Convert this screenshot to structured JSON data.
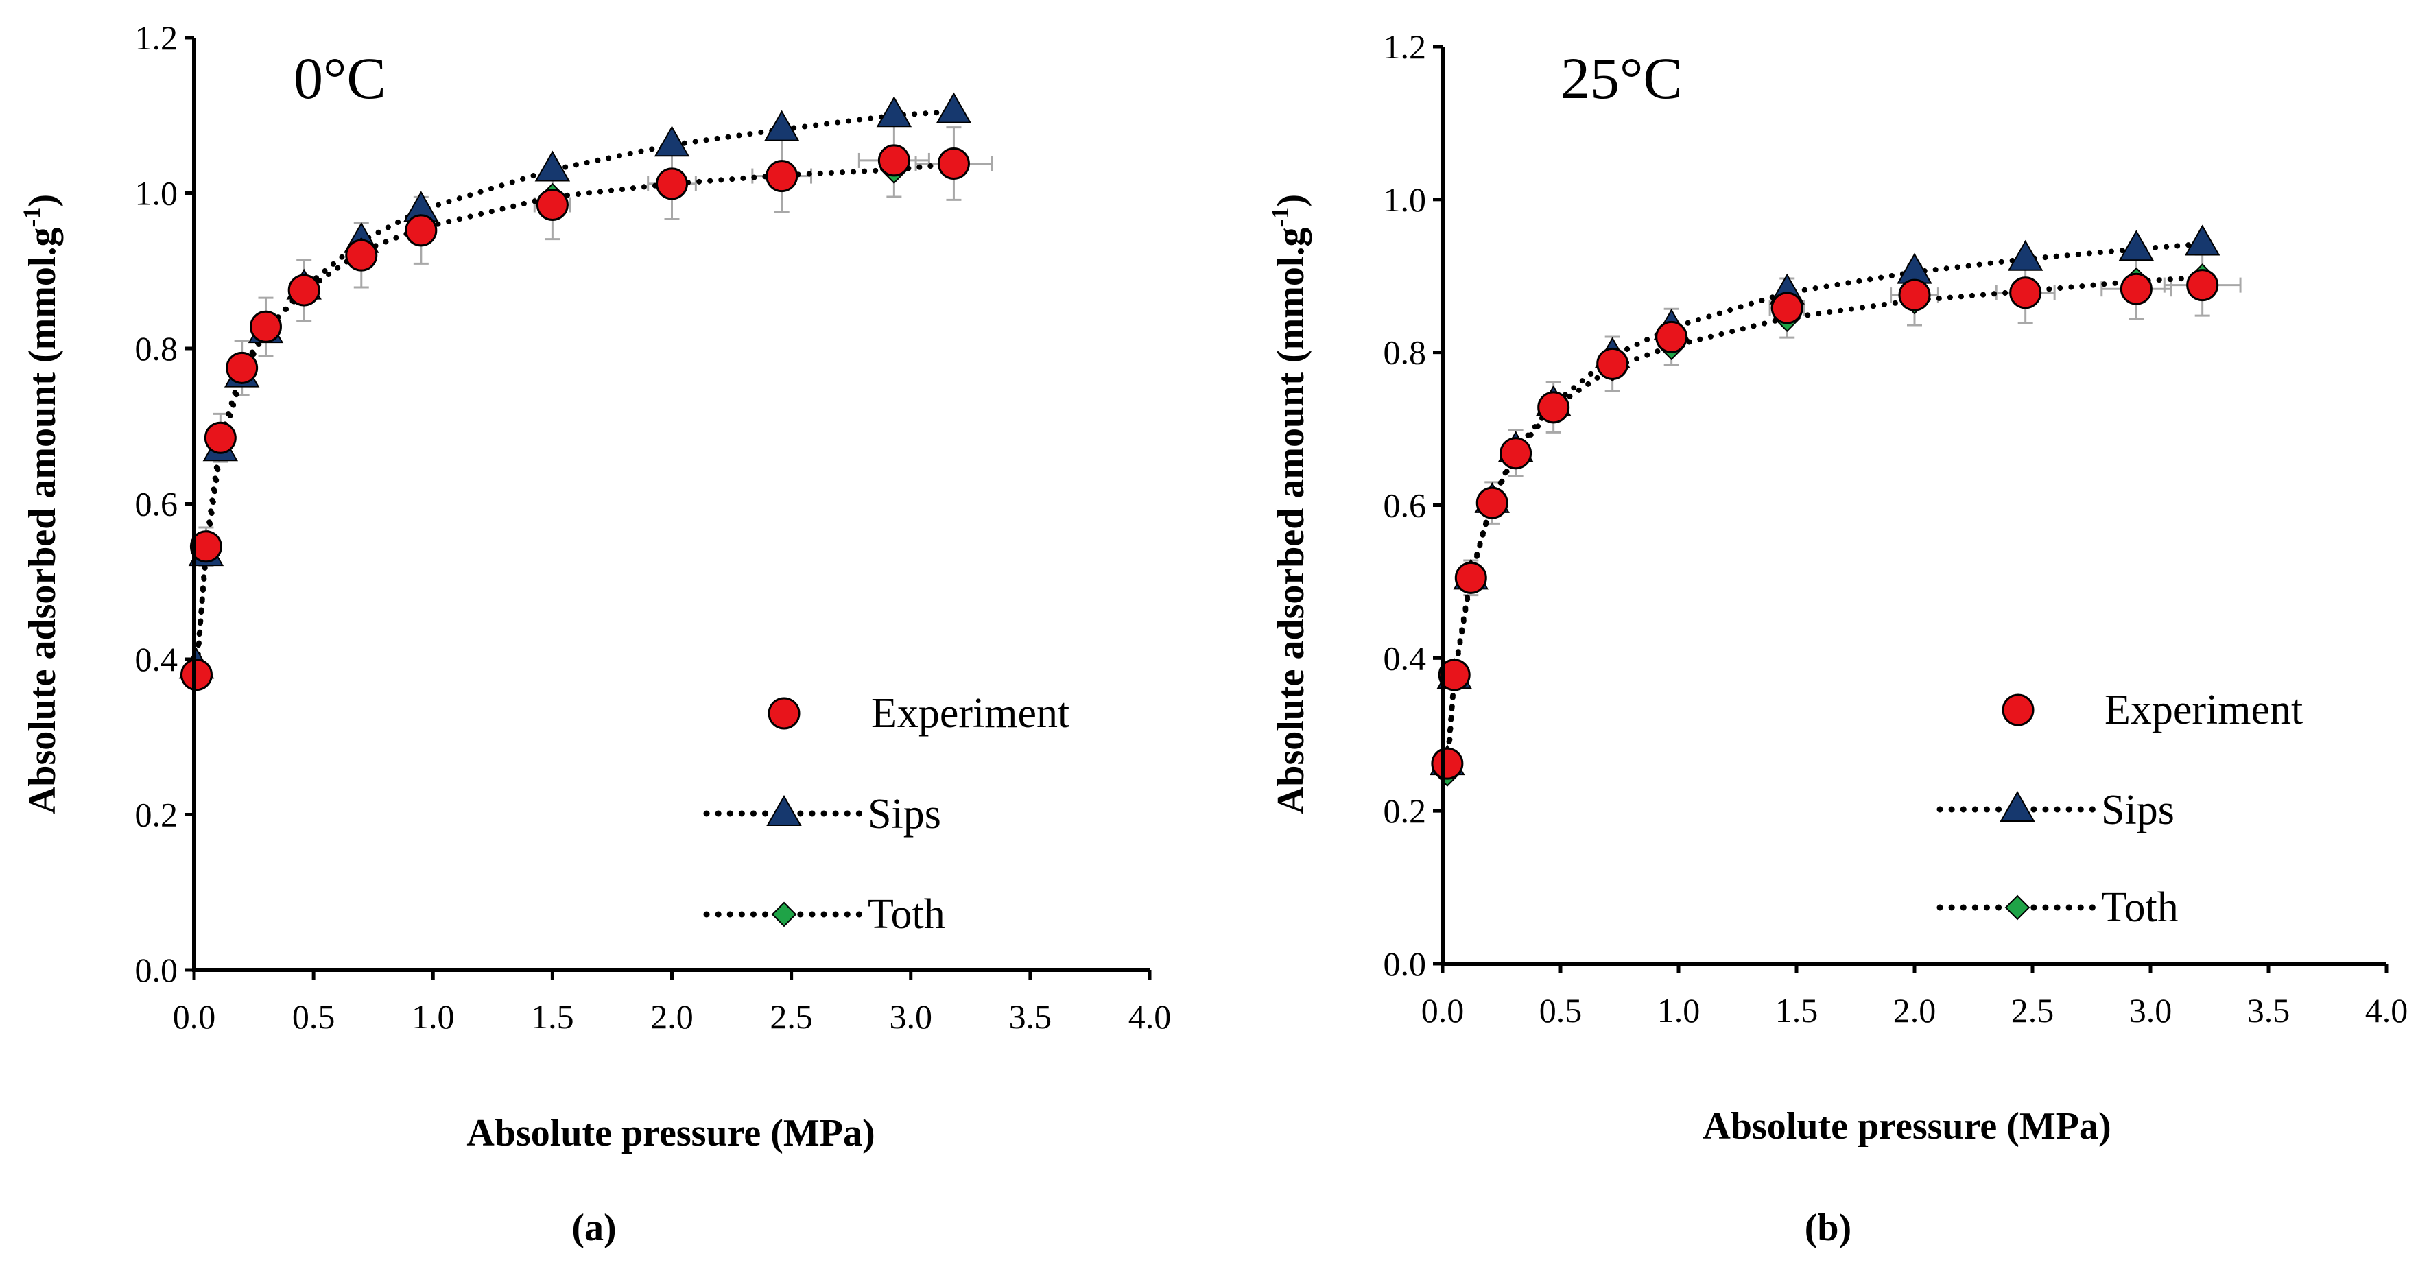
{
  "chart_data": [
    {
      "type": "scatter",
      "panel_label": "(a)",
      "title": "0°C",
      "xlabel": "Absolute pressure (MPa)",
      "ylabel": "Absolute adsorbed amount (mmol.g",
      "ylabel_sup": "-1",
      "ylabel_close": ")",
      "xlim": [
        0,
        4.0
      ],
      "ylim": [
        0,
        1.2
      ],
      "xticks": [
        "0.0",
        "0.5",
        "1.0",
        "1.5",
        "2.0",
        "2.5",
        "3.0",
        "3.5",
        "4.0"
      ],
      "yticks": [
        "0.0",
        "0.2",
        "0.4",
        "0.6",
        "0.8",
        "1.0",
        "1.2"
      ],
      "grid": false,
      "legend_position": "lower-right",
      "series": [
        {
          "name": "Experiment",
          "marker": "circle",
          "color": "#e8141b",
          "line": "none",
          "x": [
            0.01,
            0.05,
            0.11,
            0.2,
            0.3,
            0.46,
            0.7,
            0.95,
            1.5,
            2.0,
            2.46,
            2.93,
            3.18
          ],
          "y": [
            0.38,
            0.545,
            0.685,
            0.775,
            0.828,
            0.875,
            0.92,
            0.952,
            0.985,
            1.012,
            1.022,
            1.042,
            1.038
          ]
        },
        {
          "name": "Sips",
          "marker": "triangle",
          "color": "#16386e",
          "line": "dotted",
          "x": [
            0.01,
            0.05,
            0.11,
            0.2,
            0.3,
            0.46,
            0.7,
            0.95,
            1.5,
            2.0,
            2.46,
            2.93,
            3.18
          ],
          "y": [
            0.39,
            0.535,
            0.67,
            0.765,
            0.822,
            0.878,
            0.938,
            0.978,
            1.03,
            1.062,
            1.082,
            1.1,
            1.105
          ]
        },
        {
          "name": "Toth",
          "marker": "diamond",
          "color": "#1fa347",
          "line": "dotted",
          "x": [
            0.01,
            0.05,
            0.11,
            0.2,
            0.3,
            0.46,
            0.7,
            0.95,
            1.5,
            2.0,
            2.46,
            2.93,
            3.18
          ],
          "y": [
            0.378,
            0.545,
            0.683,
            0.772,
            0.825,
            0.873,
            0.925,
            0.955,
            0.995,
            1.012,
            1.023,
            1.03,
            1.038
          ]
        }
      ]
    },
    {
      "type": "scatter",
      "panel_label": "(b)",
      "title": "25°C",
      "xlabel": "Absolute pressure (MPa)",
      "ylabel": "Absolute adsorbed amount (mmol.g",
      "ylabel_sup": "-1",
      "ylabel_close": ")",
      "xlim": [
        0,
        4.0
      ],
      "ylim": [
        0,
        1.2
      ],
      "xticks": [
        "0.0",
        "0.5",
        "1.0",
        "1.5",
        "2.0",
        "2.5",
        "3.0",
        "3.5",
        "4.0"
      ],
      "yticks": [
        "0.0",
        "0.2",
        "0.4",
        "0.6",
        "0.8",
        "1.0",
        "1.2"
      ],
      "grid": false,
      "legend_position": "lower-right",
      "series": [
        {
          "name": "Experiment",
          "marker": "circle",
          "color": "#e8141b",
          "line": "none",
          "x": [
            0.02,
            0.05,
            0.12,
            0.21,
            0.31,
            0.47,
            0.72,
            0.97,
            1.46,
            2.0,
            2.47,
            2.94,
            3.22
          ],
          "y": [
            0.262,
            0.378,
            0.505,
            0.603,
            0.668,
            0.728,
            0.785,
            0.82,
            0.858,
            0.875,
            0.878,
            0.883,
            0.888
          ]
        },
        {
          "name": "Sips",
          "marker": "triangle",
          "color": "#16386e",
          "line": "dotted",
          "x": [
            0.02,
            0.05,
            0.12,
            0.21,
            0.31,
            0.47,
            0.72,
            0.97,
            1.46,
            2.0,
            2.47,
            2.94,
            3.22
          ],
          "y": [
            0.262,
            0.375,
            0.505,
            0.605,
            0.672,
            0.732,
            0.795,
            0.832,
            0.878,
            0.905,
            0.922,
            0.935,
            0.942
          ]
        },
        {
          "name": "Toth",
          "marker": "diamond",
          "color": "#1fa347",
          "line": "dotted",
          "x": [
            0.02,
            0.05,
            0.12,
            0.21,
            0.31,
            0.47,
            0.72,
            0.97,
            1.46,
            2.0,
            2.47,
            2.94,
            3.22
          ],
          "y": [
            0.25,
            0.378,
            0.508,
            0.605,
            0.668,
            0.728,
            0.78,
            0.808,
            0.845,
            0.868,
            0.88,
            0.893,
            0.898
          ]
        }
      ]
    }
  ]
}
